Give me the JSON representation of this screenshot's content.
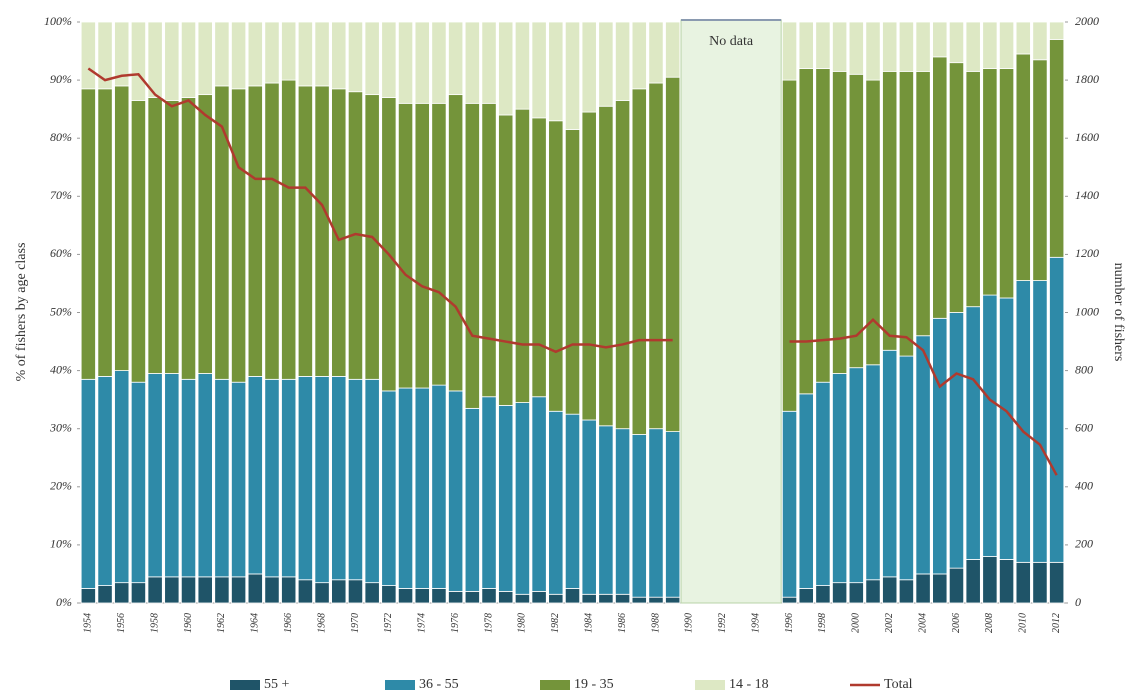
{
  "chart_data": {
    "type": "stacked_bar_line",
    "ylabel": "% of fishers by age class",
    "y2label": "number of fishers",
    "annotations": [
      "No data"
    ],
    "categories": [
      "1954",
      null,
      "1956",
      null,
      "1958",
      null,
      "1960",
      null,
      "1962",
      null,
      "1964",
      null,
      "1966",
      null,
      "1968",
      null,
      "1970",
      null,
      "1972",
      null,
      "1974",
      null,
      "1976",
      null,
      "1978",
      null,
      "1980",
      null,
      "1982",
      null,
      "1984",
      null,
      "1986",
      null,
      "1988",
      null,
      "1990",
      null,
      "1992",
      null,
      "1994",
      null,
      "1996",
      null,
      "1998",
      null,
      "2000",
      null,
      "2002",
      null,
      "2004",
      null,
      "2006",
      null,
      "2008",
      null,
      "2010",
      null,
      "2012"
    ],
    "series": [
      {
        "name": "55 +",
        "color": "#1f5468",
        "values": [
          2.5,
          3,
          3.5,
          3.5,
          4.5,
          4.5,
          4.5,
          4.5,
          4.5,
          4.5,
          5,
          4.5,
          4.5,
          4,
          3.5,
          4,
          4,
          3.5,
          3,
          2.5,
          2.5,
          2.5,
          2,
          2,
          2.5,
          2,
          1.5,
          2,
          1.5,
          2.5,
          1.5,
          1.5,
          1.5,
          1,
          1,
          1,
          null,
          null,
          null,
          null,
          null,
          null,
          1,
          2.5,
          3,
          3.5,
          3.5,
          4,
          4.5,
          4,
          5,
          5,
          6,
          7.5,
          8,
          7.5,
          7,
          7,
          7
        ]
      },
      {
        "name": "36 - 55",
        "color": "#2e8aa8",
        "values": [
          36,
          36,
          36.5,
          34.5,
          35,
          35,
          34,
          35,
          34,
          33.5,
          34,
          34,
          34,
          35,
          35.5,
          35,
          34.5,
          35,
          33.5,
          34.5,
          34.5,
          35,
          34.5,
          31.5,
          33,
          32,
          33,
          33.5,
          31.5,
          30,
          30,
          29,
          28.5,
          28,
          29,
          28.5,
          null,
          null,
          null,
          null,
          null,
          null,
          32,
          33.5,
          35,
          36,
          37,
          37,
          39,
          38.5,
          41,
          44,
          44,
          43.5,
          45,
          45,
          48.5,
          48.5,
          52.5
        ]
      },
      {
        "name": "19 - 35",
        "color": "#74943a",
        "values": [
          50,
          49.5,
          49,
          48.5,
          47.5,
          47,
          48.5,
          48,
          50.5,
          50.5,
          50,
          51,
          51.5,
          50,
          50,
          49.5,
          49.5,
          49,
          50.5,
          49,
          49,
          48.5,
          51,
          52.5,
          50.5,
          50,
          50.5,
          48,
          50,
          49,
          53,
          55,
          56.5,
          59.5,
          59.5,
          61,
          null,
          null,
          null,
          null,
          null,
          null,
          57,
          56,
          54,
          52,
          50.5,
          49,
          48,
          49,
          45.5,
          45,
          43,
          40.5,
          39,
          39.5,
          39,
          38,
          37.5
        ]
      },
      {
        "name": "14 - 18",
        "color": "#dde8c4",
        "values": [
          11.5,
          11.5,
          11,
          13.5,
          13,
          13.5,
          13,
          12.5,
          11,
          11.5,
          11,
          10.5,
          10,
          11,
          11,
          11.5,
          12,
          12.5,
          13,
          14,
          14,
          14,
          12.5,
          14,
          14,
          16,
          15,
          16.5,
          17,
          18.5,
          15.5,
          14.5,
          13.5,
          11.5,
          10.5,
          9.5,
          null,
          null,
          null,
          null,
          null,
          null,
          10,
          8,
          8,
          8.5,
          9,
          10,
          8.5,
          8.5,
          8.5,
          6,
          7,
          8.5,
          8,
          8,
          5.5,
          6.5,
          3
        ]
      },
      {
        "name": "Total",
        "color": "#b03a2e",
        "axis": "y2",
        "type": "line",
        "values": [
          1840,
          1800,
          1815,
          1820,
          1750,
          1710,
          1730,
          1680,
          1640,
          1500,
          1460,
          1460,
          1430,
          1430,
          1370,
          1250,
          1270,
          1260,
          1200,
          1130,
          1090,
          1070,
          1020,
          920,
          910,
          900,
          890,
          890,
          865,
          890,
          890,
          880,
          890,
          905,
          905,
          905,
          null,
          null,
          null,
          null,
          null,
          null,
          900,
          900,
          905,
          910,
          920,
          975,
          920,
          915,
          870,
          745,
          790,
          770,
          700,
          660,
          590,
          545,
          440
        ]
      }
    ],
    "ylim": [
      0,
      100
    ],
    "yticks": [
      {
        "value": 0,
        "label": "0%"
      },
      {
        "value": 10,
        "label": "10%"
      },
      {
        "value": 20,
        "label": "20%"
      },
      {
        "value": 30,
        "label": "30%"
      },
      {
        "value": 40,
        "label": "40%"
      },
      {
        "value": 50,
        "label": "50%"
      },
      {
        "value": 60,
        "label": "60%"
      },
      {
        "value": 70,
        "label": "70%"
      },
      {
        "value": 80,
        "label": "80%"
      },
      {
        "value": 90,
        "label": "90%"
      },
      {
        "value": 100,
        "label": "100%"
      }
    ],
    "y2lim": [
      0,
      2000
    ],
    "y2ticks": [
      0,
      200,
      400,
      600,
      800,
      1000,
      1200,
      1400,
      1600,
      1800,
      2000
    ],
    "legend": "bottom"
  }
}
